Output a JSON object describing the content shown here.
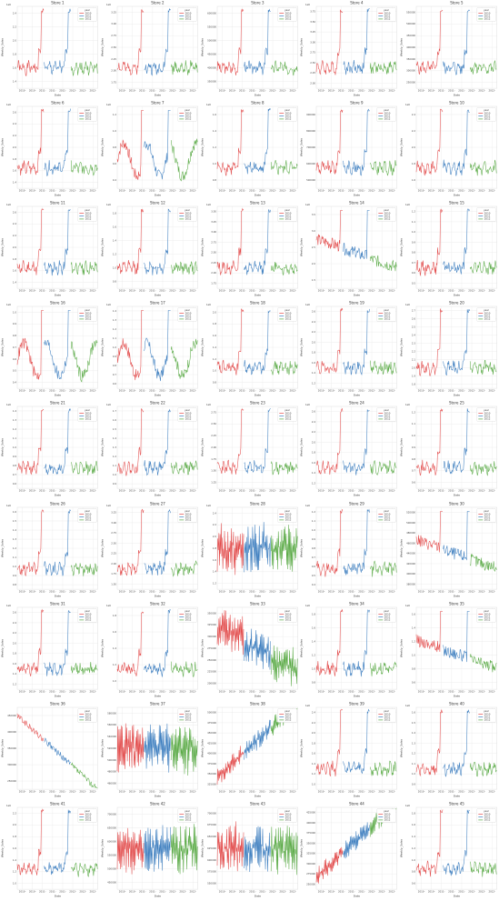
{
  "chart_data": {
    "type": "line",
    "layout": "grid",
    "rows": 9,
    "cols": 5,
    "xlabel": "Date",
    "ylabel": "Weekly_Sales",
    "legend_title": "year",
    "legend_placement": "top-right",
    "grid": true,
    "x_tick_labels": [
      "2010-",
      "2010-",
      "2011-",
      "2011-",
      "2011-",
      "2012-",
      "2012-",
      "2012-"
    ],
    "years": [
      "2010",
      "2011",
      "2012"
    ],
    "colors": {
      "2010": "#e24a4a",
      "2011": "#3d7ebf",
      "2012": "#5aaa46"
    },
    "panels": [
      {
        "title": "Store 1",
        "exp": "1e6",
        "yticks": [
          "1.4",
          "1.6",
          "1.8",
          "2.0",
          "2.2",
          "2.4"
        ],
        "style": "peaks",
        "seed": 1
      },
      {
        "title": "Store 2",
        "exp": "1e6",
        "yticks": [
          "1.75",
          "2.00",
          "2.25",
          "2.50",
          "2.75",
          "3.00",
          "3.25"
        ],
        "style": "peaks",
        "seed": 2
      },
      {
        "title": "Store 3",
        "exp": "",
        "yticks": [
          "350000",
          "400000",
          "450000",
          "500000",
          "550000",
          "600000"
        ],
        "style": "peaks",
        "seed": 3
      },
      {
        "title": "Store 4",
        "exp": "1e6",
        "yticks": [
          "2.00",
          "2.25",
          "2.50",
          "2.75",
          "3.00",
          "3.25",
          "3.50",
          "3.75"
        ],
        "style": "peaks",
        "seed": 4
      },
      {
        "title": "Store 5",
        "exp": "",
        "yticks": [
          "250000",
          "300000",
          "350000",
          "400000",
          "450000",
          "500000",
          "550000"
        ],
        "style": "peaks",
        "seed": 5
      },
      {
        "title": "Store 6",
        "exp": "1e6",
        "yticks": [
          "1.4",
          "1.6",
          "1.8",
          "2.0",
          "2.2",
          "2.4",
          "2.6"
        ],
        "style": "peaks",
        "seed": 6
      },
      {
        "title": "Store 7",
        "exp": "1e6",
        "yticks": [
          "0.4",
          "0.6",
          "0.8",
          "1.0",
          "1.2"
        ],
        "style": "wavy",
        "seed": 7
      },
      {
        "title": "Store 8",
        "exp": "1e6",
        "yticks": [
          "0.8",
          "1.0",
          "1.2",
          "1.4",
          "1.6"
        ],
        "style": "peaks",
        "seed": 8
      },
      {
        "title": "Store 9",
        "exp": "",
        "yticks": [
          "500000",
          "600000",
          "700000",
          "800000",
          "900000"
        ],
        "style": "peaks",
        "seed": 9
      },
      {
        "title": "Store 10",
        "exp": "1e6",
        "yticks": [
          "1.6",
          "1.8",
          "2.0",
          "2.2",
          "2.4"
        ],
        "style": "peaks",
        "seed": 10
      },
      {
        "title": "Store 11",
        "exp": "1e6",
        "yticks": [
          "1.4",
          "1.6",
          "1.8",
          "2.0",
          "2.2",
          "2.4",
          "2.6"
        ],
        "style": "peaks",
        "seed": 11
      },
      {
        "title": "Store 12",
        "exp": "1e6",
        "yticks": [
          "0.8",
          "1.0",
          "1.2",
          "1.4",
          "1.6",
          "1.8"
        ],
        "style": "peaks",
        "seed": 12
      },
      {
        "title": "Store 13",
        "exp": "1e6",
        "yticks": [
          "1.75",
          "2.00",
          "2.25",
          "2.50",
          "2.75",
          "3.00",
          "3.25",
          "3.50"
        ],
        "style": "peaks",
        "seed": 13
      },
      {
        "title": "Store 14",
        "exp": "1e6",
        "yticks": [
          "1.5",
          "2.0",
          "2.5",
          "3.0",
          "3.5"
        ],
        "style": "trenddown",
        "seed": 14
      },
      {
        "title": "Store 15",
        "exp": "1e6",
        "yticks": [
          "0.5",
          "0.6",
          "0.7",
          "0.8",
          "0.9",
          "1.0",
          "1.1",
          "1.2"
        ],
        "style": "peaks",
        "seed": 15
      },
      {
        "title": "Store 16",
        "exp": "1e6",
        "yticks": [
          "0.4",
          "0.5",
          "0.6",
          "0.7",
          "0.8",
          "0.9",
          "1.0"
        ],
        "style": "wavy",
        "seed": 16
      },
      {
        "title": "Store 17",
        "exp": "1e6",
        "yticks": [
          "0.6",
          "0.7",
          "0.8",
          "0.9",
          "1.0",
          "1.1",
          "1.2",
          "1.3",
          "1.4"
        ],
        "style": "wavy",
        "seed": 17
      },
      {
        "title": "Store 18",
        "exp": "1e6",
        "yticks": [
          "0.8",
          "1.0",
          "1.2",
          "1.4",
          "1.6",
          "1.8",
          "2.0"
        ],
        "style": "peaks",
        "seed": 18
      },
      {
        "title": "Store 19",
        "exp": "1e6",
        "yticks": [
          "1.2",
          "1.4",
          "1.6",
          "1.8",
          "2.0",
          "2.2",
          "2.4",
          "2.6"
        ],
        "style": "peaks",
        "seed": 19
      },
      {
        "title": "Store 20",
        "exp": "1e6",
        "yticks": [
          "1.8",
          "1.9",
          "2.0",
          "2.1",
          "2.2",
          "2.3",
          "2.4",
          "2.5",
          "2.6",
          "2.7"
        ],
        "style": "peaks",
        "seed": 20
      },
      {
        "title": "Store 21",
        "exp": "1e6",
        "yticks": [
          "0.6",
          "0.7",
          "0.8",
          "0.9",
          "1.0",
          "1.1",
          "1.2",
          "1.3",
          "1.4"
        ],
        "style": "peaks",
        "seed": 21
      },
      {
        "title": "Store 22",
        "exp": "1e6",
        "yticks": [
          "0.9",
          "1.0",
          "1.1",
          "1.2",
          "1.3",
          "1.4",
          "1.5",
          "1.6",
          "1.7"
        ],
        "style": "peaks",
        "seed": 22
      },
      {
        "title": "Store 23",
        "exp": "1e6",
        "yticks": [
          "1.25",
          "1.50",
          "1.75",
          "2.00",
          "2.25",
          "2.50",
          "2.75"
        ],
        "style": "peaks",
        "seed": 23
      },
      {
        "title": "Store 24",
        "exp": "1e6",
        "yticks": [
          "1.2",
          "1.4",
          "1.6",
          "1.8",
          "2.0",
          "2.2",
          "2.4",
          "2.6"
        ],
        "style": "peaks",
        "seed": 24
      },
      {
        "title": "Store 25",
        "exp": "1e6",
        "yticks": [
          "0.6",
          "0.7",
          "0.8",
          "0.9",
          "1.0",
          "1.1",
          "1.2"
        ],
        "style": "peaks",
        "seed": 25
      },
      {
        "title": "Store 26",
        "exp": "1e6",
        "yticks": [
          "0.8",
          "0.9",
          "1.0",
          "1.1",
          "1.2",
          "1.3",
          "1.4",
          "1.5",
          "1.6"
        ],
        "style": "peaks",
        "seed": 26
      },
      {
        "title": "Store 27",
        "exp": "1e6",
        "yticks": [
          "1.50",
          "1.75",
          "2.00",
          "2.25",
          "2.50",
          "2.75",
          "3.00",
          "3.25"
        ],
        "style": "peaks",
        "seed": 27
      },
      {
        "title": "Store 28",
        "exp": "1e6",
        "yticks": [
          "1.2",
          "1.4",
          "1.6",
          "1.8",
          "2.0",
          "2.2",
          "2.4"
        ],
        "style": "noisy",
        "seed": 28
      },
      {
        "title": "Store 29",
        "exp": "1e6",
        "yticks": [
          "0.4",
          "0.5",
          "0.6",
          "0.7",
          "0.8",
          "0.9",
          "1.0",
          "1.1",
          "1.2"
        ],
        "style": "peaks",
        "seed": 29
      },
      {
        "title": "Store 30",
        "exp": "",
        "yticks": [
          "380000",
          "400000",
          "420000",
          "440000",
          "460000",
          "480000",
          "500000",
          "520000"
        ],
        "style": "trenddown",
        "seed": 30
      },
      {
        "title": "Store 31",
        "exp": "1e6",
        "yticks": [
          "1.2",
          "1.4",
          "1.6",
          "1.8",
          "2.0",
          "2.2",
          "2.4",
          "2.6"
        ],
        "style": "peaks",
        "seed": 31
      },
      {
        "title": "Store 32",
        "exp": "1e6",
        "yticks": [
          "1.0",
          "1.2",
          "1.4",
          "1.6",
          "1.8"
        ],
        "style": "peaks",
        "seed": 32
      },
      {
        "title": "Store 33",
        "exp": "",
        "yticks": [
          "200000",
          "225000",
          "250000",
          "275000",
          "300000",
          "325000",
          "350000"
        ],
        "style": "noisydown",
        "seed": 33
      },
      {
        "title": "Store 34",
        "exp": "1e6",
        "yticks": [
          "0.8",
          "1.0",
          "1.2",
          "1.4",
          "1.6",
          "1.8"
        ],
        "style": "peaks",
        "seed": 34
      },
      {
        "title": "Store 35",
        "exp": "1e6",
        "yticks": [
          "0.6",
          "0.8",
          "1.0",
          "1.2",
          "1.4",
          "1.6"
        ],
        "style": "trenddown",
        "seed": 35
      },
      {
        "title": "Store 36",
        "exp": "",
        "yticks": [
          "250000",
          "300000",
          "350000",
          "400000",
          "450000"
        ],
        "style": "decline",
        "seed": 36
      },
      {
        "title": "Store 37",
        "exp": "",
        "yticks": [
          "460000",
          "480000",
          "500000",
          "520000",
          "540000",
          "560000",
          "580000"
        ],
        "style": "noisy",
        "seed": 37
      },
      {
        "title": "Store 38",
        "exp": "",
        "yticks": [
          "325000",
          "350000",
          "375000",
          "400000",
          "425000",
          "450000",
          "475000",
          "500000"
        ],
        "style": "incline",
        "seed": 38
      },
      {
        "title": "Store 39",
        "exp": "1e6",
        "yticks": [
          "1.0",
          "1.2",
          "1.4",
          "1.6",
          "1.8",
          "2.0",
          "2.2",
          "2.4"
        ],
        "style": "peaks",
        "seed": 39
      },
      {
        "title": "Store 40",
        "exp": "1e6",
        "yticks": [
          "0.9",
          "1.0",
          "1.1",
          "1.2",
          "1.3",
          "1.4",
          "1.5",
          "1.6"
        ],
        "style": "peaks",
        "seed": 40
      },
      {
        "title": "Store 41",
        "exp": "1e6",
        "yticks": [
          "1.0",
          "1.2",
          "1.4",
          "1.6",
          "1.8",
          "2.0",
          "2.2"
        ],
        "style": "peaks",
        "seed": 41
      },
      {
        "title": "Store 42",
        "exp": "",
        "yticks": [
          "450000",
          "500000",
          "550000",
          "600000",
          "650000",
          "700000"
        ],
        "style": "noisy",
        "seed": 42
      },
      {
        "title": "Store 43",
        "exp": "",
        "yticks": [
          "550000",
          "575000",
          "600000",
          "625000",
          "650000",
          "675000",
          "700000"
        ],
        "style": "noisy",
        "seed": 43
      },
      {
        "title": "Store 44",
        "exp": "",
        "yticks": [
          "250000",
          "275000",
          "300000",
          "325000",
          "350000",
          "375000",
          "400000",
          "425000"
        ],
        "style": "incline",
        "seed": 44
      },
      {
        "title": "Store 45",
        "exp": "1e6",
        "yticks": [
          "0.6",
          "0.8",
          "1.0",
          "1.2",
          "1.4",
          "1.6",
          "1.8"
        ],
        "style": "peaks",
        "seed": 45
      }
    ]
  }
}
